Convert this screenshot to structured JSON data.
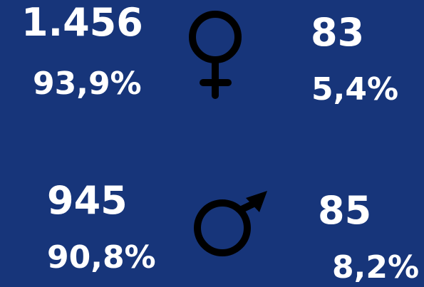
{
  "female": {
    "count_left": "1.456",
    "pct_left": "93,9%",
    "count_right": "83",
    "pct_right": "5,4%"
  },
  "male": {
    "count_left": "945",
    "pct_left": "90,8%",
    "count_right": "85",
    "pct_right": "8,2%"
  }
}
